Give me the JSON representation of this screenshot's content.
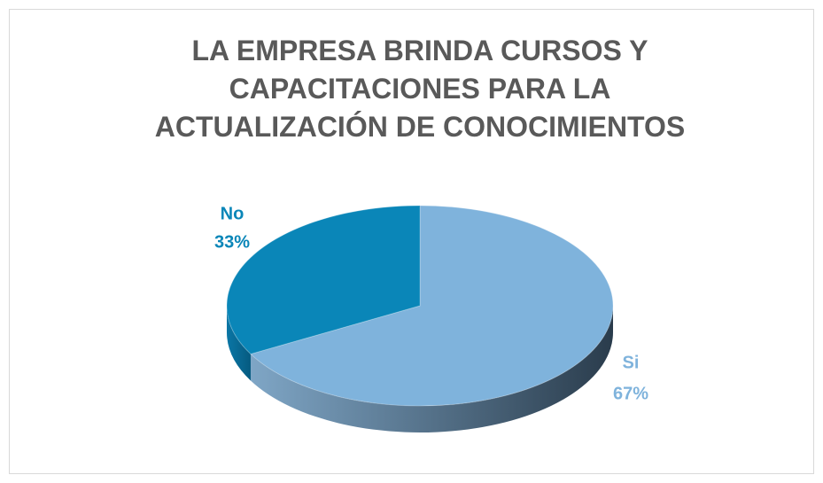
{
  "chart_data": {
    "type": "pie",
    "title": "LA EMPRESA BRINDA CURSOS Y CAPACITACIONES PARA LA ACTUALIZACIÓN DE CONOCIMIENTOS",
    "categories": [
      "Si",
      "No"
    ],
    "values": [
      67,
      33
    ],
    "value_labels": [
      "67%",
      "33%"
    ],
    "colors": [
      "#7fb3dc",
      "#0a86b8"
    ]
  }
}
